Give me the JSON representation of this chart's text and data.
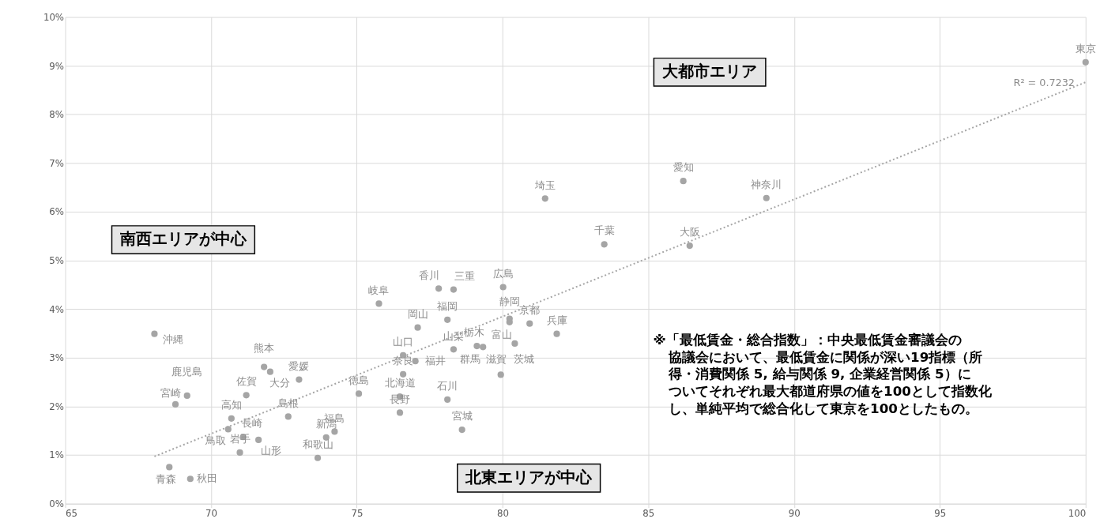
{
  "chart_data": {
    "type": "scatter",
    "xlim": [
      65,
      100
    ],
    "xticks": [
      65,
      70,
      75,
      80,
      85,
      90,
      95,
      100
    ],
    "ylim": [
      0,
      10
    ],
    "yticks": [
      {
        "value": 0,
        "label": "0%"
      },
      {
        "value": 1,
        "label": "1%"
      },
      {
        "value": 2,
        "label": "2%"
      },
      {
        "value": 3,
        "label": "3%"
      },
      {
        "value": 4,
        "label": "4%"
      },
      {
        "value": 5,
        "label": "5%"
      },
      {
        "value": 6,
        "label": "6%"
      },
      {
        "value": 7,
        "label": "7%"
      },
      {
        "value": 8,
        "label": "8%"
      },
      {
        "value": 9,
        "label": "9%"
      },
      {
        "value": 10,
        "label": "10%"
      }
    ],
    "grid": true,
    "series": [
      {
        "color": "#a5a5a5",
        "marker": "circle",
        "x": [
          68.06,
          69.18,
          68.78,
          71.21,
          71.82,
          72.03,
          73.02,
          70.7,
          70.59,
          71.1,
          71.63,
          70.99,
          68.57,
          69.29,
          72.65,
          74.24,
          73.95,
          73.66,
          75.07,
          75.76,
          77.81,
          78.32,
          78.11,
          77.09,
          76.59,
          76.59,
          77.01,
          78.32,
          79.12,
          79.33,
          78.11,
          78.61,
          76.48,
          76.48,
          80.02,
          80.24,
          80.24,
          80.93,
          81.86,
          80.42,
          79.94,
          81.46,
          86.2,
          89.05,
          83.49,
          86.42,
          100.0
        ],
        "values": [
          3.49,
          2.22,
          2.04,
          2.23,
          2.81,
          2.71,
          2.55,
          1.75,
          1.53,
          1.37,
          1.31,
          1.05,
          0.75,
          0.51,
          1.79,
          1.48,
          1.36,
          0.94,
          2.26,
          4.11,
          4.42,
          4.4,
          3.78,
          3.62,
          3.05,
          2.66,
          2.93,
          3.17,
          3.24,
          3.22,
          2.14,
          1.52,
          2.2,
          1.87,
          4.45,
          3.8,
          3.73,
          3.7,
          3.49,
          3.29,
          2.65,
          6.27,
          6.63,
          6.28,
          5.33,
          5.3,
          9.07
        ],
        "value_labels": [
          "沖縄",
          "鹿児島",
          "宮崎",
          "佐賀",
          "熊本",
          "大分",
          "愛媛",
          "高知",
          "鳥取",
          "長崎",
          "山形",
          "岩手",
          "青森",
          "秋田",
          "島根",
          "福島",
          "新潟",
          "和歌山",
          "徳島",
          "岐阜",
          "香川",
          "三重",
          "福岡",
          "岡山",
          "山口",
          "奈良",
          "福井",
          "山梨",
          "栃木",
          "群馬",
          "石川",
          "宮城",
          "北海道",
          "長野",
          "広島",
          "静岡",
          "富山",
          "京都",
          "兵庫",
          "茨城",
          "滋賀",
          "埼玉",
          "愛知",
          "神奈川",
          "千葉",
          "大阪",
          "東京"
        ]
      },
      {
        "type": "line",
        "line_style": "dotted",
        "color": "#a5a5a5",
        "x": [
          68.06,
          100
        ],
        "values": [
          0.97,
          8.66
        ]
      }
    ],
    "annotations": [
      "大都市エリア",
      "南西エリアが中心",
      "北東エリアが中心",
      "R² = 0.7232",
      "※「最低賃金・総合指数」：中央最低賃金審議会の",
      "協議会において、最低賃金に関係が深い19指標（所",
      "得・消費関係 5, 給与関係 9, 企業経営関係 5）に",
      "ついてそれぞれ最大都道府県の値を100として指数化",
      "し、単純平均で総合化して東京を100としたもの。"
    ]
  }
}
